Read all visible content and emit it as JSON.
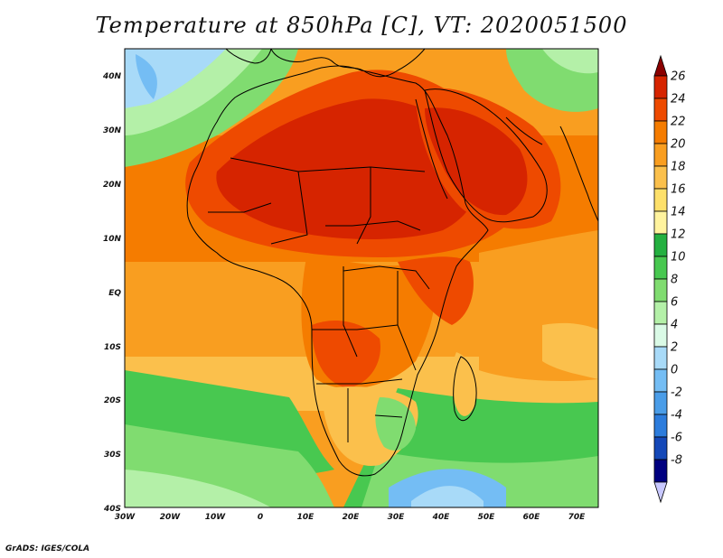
{
  "title": "Temperature at 850hPa [C], VT: 2020051500",
  "credit": "GrADS: IGES/COLA",
  "lat_labels": [
    "40N",
    "30N",
    "20N",
    "10N",
    "EQ",
    "10S",
    "20S",
    "30S",
    "40S"
  ],
  "lon_labels": [
    "30W",
    "20W",
    "10W",
    "0",
    "10E",
    "20E",
    "30E",
    "40E",
    "50E",
    "60E",
    "70E"
  ],
  "colorbar": {
    "levels": [
      "26",
      "24",
      "22",
      "20",
      "18",
      "16",
      "14",
      "12",
      "10",
      "8",
      "6",
      "4",
      "2",
      "0",
      "-2",
      "-4",
      "-6",
      "-8"
    ],
    "colors": [
      "#8a0000",
      "#d62400",
      "#ee4a00",
      "#f57c00",
      "#f99e20",
      "#fbc04c",
      "#fde06a",
      "#fff39e",
      "#24b040",
      "#48c850",
      "#80dc70",
      "#b4f0a8",
      "#dafae6",
      "#a8daf8",
      "#74bdf4",
      "#4a9de8",
      "#2c7cdc",
      "#1448b8",
      "#000080",
      "#c8c8ff"
    ]
  },
  "regions": [
    {
      "name": "sahara-hot-core",
      "color": "#d62400"
    },
    {
      "name": "arabia-hot",
      "color": "#ee4a00"
    },
    {
      "name": "tropical-atlantic",
      "color": "#f99e20"
    },
    {
      "name": "southern-africa-interior",
      "color": "#fbc04c"
    },
    {
      "name": "south-atlantic-cool",
      "color": "#48c850"
    },
    {
      "name": "north-atlantic-cool",
      "color": "#74bdf4"
    },
    {
      "name": "southern-ocean-cold",
      "color": "#4a9de8"
    }
  ]
}
